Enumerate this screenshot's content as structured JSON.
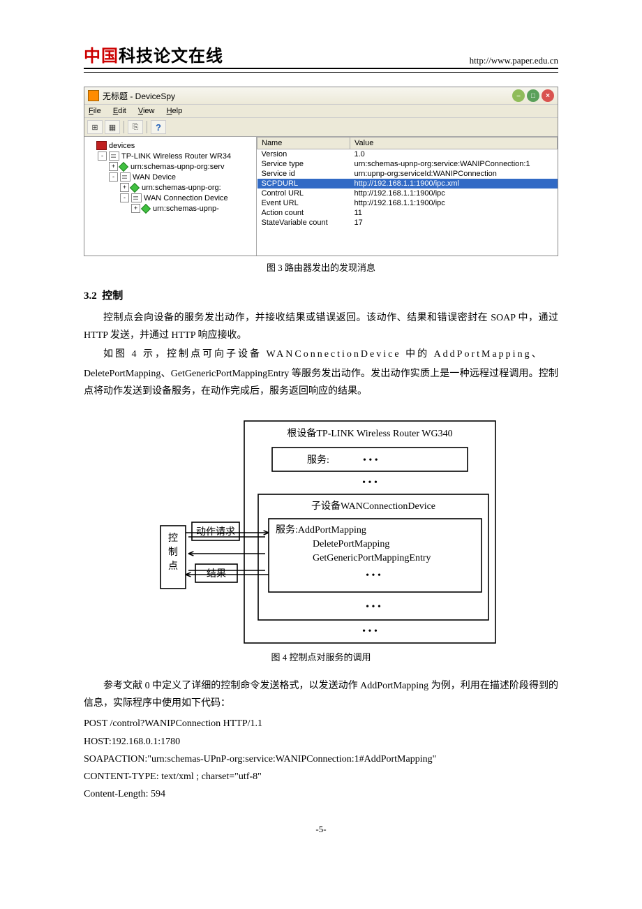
{
  "header": {
    "logo_red": "中国",
    "logo_black": "科技论文在线",
    "url": "http://www.paper.edu.cn"
  },
  "window": {
    "title": "无标题 - DeviceSpy",
    "menu": [
      "File",
      "Edit",
      "View",
      "Help"
    ],
    "tree": [
      {
        "indent": 0,
        "exp": null,
        "icon": "dev",
        "label": "devices"
      },
      {
        "indent": 1,
        "exp": "-",
        "icon": "page",
        "label": "TP-LINK Wireless Router WR34"
      },
      {
        "indent": 2,
        "exp": "+",
        "icon": "diamond",
        "label": "urn:schemas-upnp-org:serv"
      },
      {
        "indent": 2,
        "exp": "-",
        "icon": "page",
        "label": "WAN Device"
      },
      {
        "indent": 3,
        "exp": "+",
        "icon": "diamond",
        "label": "urn:schemas-upnp-org:"
      },
      {
        "indent": 3,
        "exp": "-",
        "icon": "page",
        "label": "WAN Connection Device"
      },
      {
        "indent": 4,
        "exp": "+",
        "icon": "diamond",
        "label": "urn:schemas-upnp-"
      }
    ],
    "columns": [
      "Name",
      "Value"
    ],
    "rows": [
      {
        "name": "Version",
        "value": "1.0",
        "sel": false
      },
      {
        "name": "Service type",
        "value": "urn:schemas-upnp-org:service:WANIPConnection:1",
        "sel": false
      },
      {
        "name": "Service id",
        "value": "urn:upnp-org:serviceId:WANIPConnection",
        "sel": false
      },
      {
        "name": "SCPDURL",
        "value": "http://192.168.1.1:1900/ipc.xml",
        "sel": true
      },
      {
        "name": "Control URL",
        "value": "http://192.168.1.1:1900/ipc",
        "sel": false
      },
      {
        "name": "Event URL",
        "value": "http://192.168.1.1:1900/ipc",
        "sel": false
      },
      {
        "name": "Action count",
        "value": "11",
        "sel": false
      },
      {
        "name": "StateVariable count",
        "value": "17",
        "sel": false
      }
    ]
  },
  "captions": {
    "fig3": "图 3  路由器发出的发现消息",
    "fig4": "图 4  控制点对服务的调用"
  },
  "sections": {
    "s32_num": "3.2",
    "s32_title": "控制"
  },
  "paras": {
    "p1": "控制点会向设备的服务发出动作，并接收结果或错误返回。该动作、结果和错误密封在 SOAP 中，通过 HTTP 发送，并通过 HTTP 响应接收。",
    "p2a": "如图 4 示，控制点可向子设备 WANConnectionDevice 中的 AddPortMapping、",
    "p2b": "DeletePortMapping、GetGenericPortMappingEntry 等服务发出动作。发出动作实质上是一种远程过程调用。控制点将动作发送到设备服务，在动作完成后，服务返回响应的结果。",
    "p3": "参考文献 0 中定义了详细的控制命令发送格式，以发送动作 AddPortMapping 为例，利用在描述阶段得到的信息，实际程序中使用如下代码："
  },
  "diagram": {
    "root_label": "根设备TP-LINK Wireless Router WG340",
    "svc_label": "服务:",
    "dots": "• • •",
    "sub_label": "子设备WANConnectionDevice",
    "ctrl": "控\n制\n点",
    "req": "动作请求",
    "res": "结果",
    "svc2_line1": "服务:AddPortMapping",
    "svc2_line2": "DeletePortMapping",
    "svc2_line3": "GetGenericPortMappingEntry",
    "colors": {
      "stroke": "#000000",
      "bg": "#ffffff",
      "text": "#000000"
    },
    "font_size": 14
  },
  "code": [
    "POST /control?WANIPConnection HTTP/1.1",
    "HOST:192.168.0.1:1780",
    "SOAPACTION:\"urn:schemas-UPnP-org:service:WANIPConnection:1#AddPortMapping\"",
    "CONTENT-TYPE: text/xml ; charset=\"utf-8\"",
    "Content-Length: 594"
  ],
  "page_num": "-5-"
}
